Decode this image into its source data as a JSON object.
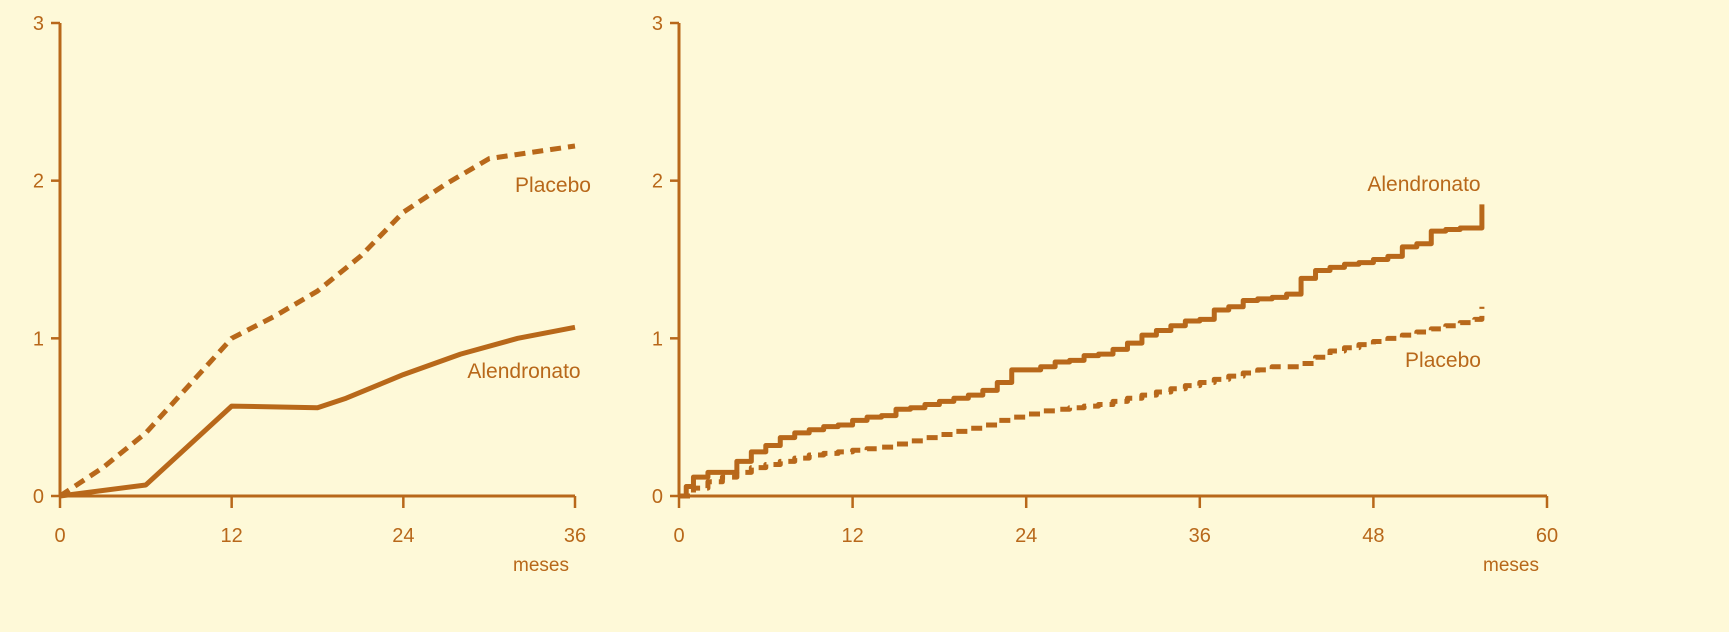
{
  "colors": {
    "background": "#FEF9D8",
    "accent": "#B8681A"
  },
  "chart_data": [
    {
      "type": "line",
      "title": "",
      "xlabel": "meses",
      "ylabel": "",
      "xlim": [
        0,
        36
      ],
      "ylim": [
        0,
        3
      ],
      "x_ticks": [
        "0",
        "12",
        "24",
        "36"
      ],
      "y_ticks": [
        "0",
        "1",
        "2",
        "3"
      ],
      "grid": false,
      "series": [
        {
          "name": "Placebo",
          "style": "dashed",
          "x": [
            0,
            3,
            6,
            9,
            12,
            15,
            18,
            21,
            24,
            27,
            30,
            33,
            36
          ],
          "y": [
            0,
            0.18,
            0.4,
            0.7,
            1.0,
            1.14,
            1.3,
            1.52,
            1.8,
            1.98,
            2.14,
            2.18,
            2.22
          ]
        },
        {
          "name": "Alendronato",
          "style": "solid",
          "x": [
            0,
            6,
            12,
            18,
            20,
            24,
            28,
            32,
            36
          ],
          "y": [
            0,
            0.07,
            0.57,
            0.56,
            0.62,
            0.77,
            0.9,
            1.0,
            1.07
          ]
        }
      ]
    },
    {
      "type": "line",
      "title": "",
      "xlabel": "meses",
      "ylabel": "",
      "xlim": [
        0,
        60
      ],
      "ylim": [
        0,
        3
      ],
      "x_ticks": [
        "0",
        "12",
        "24",
        "36",
        "48",
        "60"
      ],
      "y_ticks": [
        "0",
        "1",
        "2",
        "3"
      ],
      "grid": false,
      "series": [
        {
          "name": "Alendronato",
          "style": "solid",
          "step": true,
          "x": [
            0,
            0.5,
            1,
            2,
            3,
            4,
            5,
            6,
            7,
            8,
            9,
            10,
            11,
            12,
            13,
            14,
            15,
            16,
            17,
            18,
            19,
            20,
            21,
            22,
            23,
            24,
            25,
            26,
            27,
            28,
            29,
            30,
            31,
            32,
            33,
            34,
            35,
            36,
            37,
            38,
            39,
            40,
            41,
            42,
            43,
            44,
            45,
            46,
            47,
            48,
            49,
            50,
            51,
            52,
            53,
            54,
            55.5
          ],
          "y": [
            0,
            0.06,
            0.12,
            0.15,
            0.15,
            0.22,
            0.28,
            0.32,
            0.37,
            0.4,
            0.42,
            0.44,
            0.45,
            0.48,
            0.5,
            0.51,
            0.55,
            0.56,
            0.58,
            0.6,
            0.62,
            0.64,
            0.67,
            0.72,
            0.8,
            0.8,
            0.82,
            0.85,
            0.86,
            0.89,
            0.9,
            0.93,
            0.97,
            1.02,
            1.05,
            1.08,
            1.11,
            1.12,
            1.18,
            1.2,
            1.24,
            1.25,
            1.26,
            1.28,
            1.38,
            1.43,
            1.45,
            1.47,
            1.48,
            1.5,
            1.52,
            1.58,
            1.6,
            1.68,
            1.69,
            1.7,
            1.85
          ]
        },
        {
          "name": "Placebo",
          "style": "dashed",
          "step": true,
          "x": [
            0,
            1,
            2,
            3,
            4,
            5,
            6,
            7,
            8,
            9,
            10,
            11,
            12,
            13,
            14,
            15,
            16,
            17,
            18,
            19,
            20,
            21,
            22,
            23,
            24,
            25,
            26,
            27,
            28,
            29,
            30,
            31,
            32,
            33,
            34,
            35,
            36,
            37,
            38,
            39,
            40,
            41,
            42,
            43,
            44,
            45,
            46,
            47,
            48,
            49,
            50,
            51,
            52,
            53,
            54,
            55,
            55.5
          ],
          "y": [
            0,
            0.05,
            0.09,
            0.12,
            0.15,
            0.18,
            0.2,
            0.22,
            0.24,
            0.26,
            0.27,
            0.28,
            0.29,
            0.3,
            0.31,
            0.33,
            0.35,
            0.37,
            0.39,
            0.41,
            0.43,
            0.45,
            0.48,
            0.5,
            0.52,
            0.54,
            0.55,
            0.56,
            0.57,
            0.58,
            0.6,
            0.62,
            0.64,
            0.66,
            0.68,
            0.7,
            0.72,
            0.74,
            0.76,
            0.78,
            0.8,
            0.82,
            0.82,
            0.84,
            0.88,
            0.92,
            0.94,
            0.96,
            0.98,
            1.0,
            1.02,
            1.04,
            1.06,
            1.08,
            1.1,
            1.12,
            1.2
          ]
        }
      ]
    }
  ]
}
